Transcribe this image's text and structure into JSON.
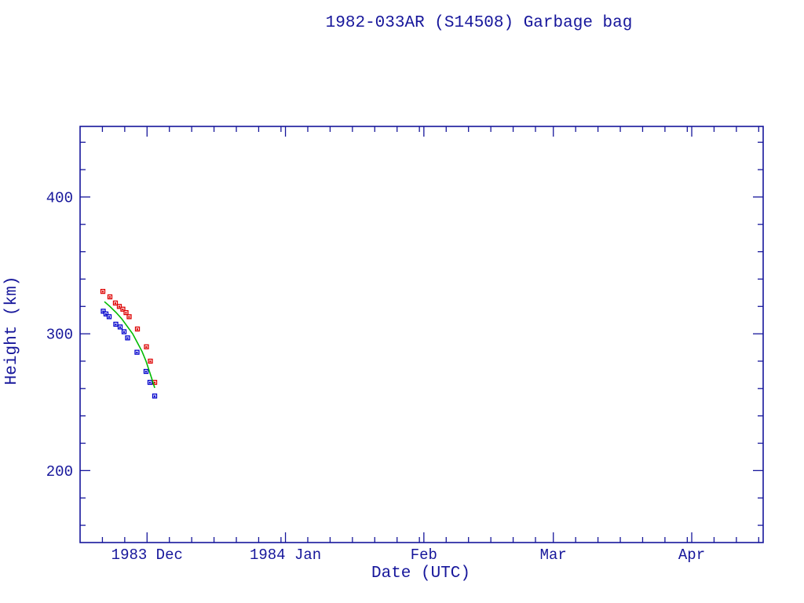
{
  "colors": {
    "axis_and_text": "#16169b",
    "red_series": "#dd0000",
    "blue_series": "#0000cc",
    "green_series": "#00bb00",
    "background": "#ffffff"
  },
  "chart_data": {
    "type": "scatter",
    "title": "1982-033AR (S14508) Garbage bag",
    "xlabel": "Date (UTC)",
    "ylabel": "Height (km)",
    "grid": false,
    "legend": "none",
    "x_axis": {
      "unit": "days since 1983-11-16 (left edge of plot)",
      "span_days": 153,
      "major_ticks": [
        {
          "label": "1983 Dec",
          "day": 15
        },
        {
          "label": "1984 Jan",
          "day": 46
        },
        {
          "label": "Feb",
          "day": 77
        },
        {
          "label": "Mar",
          "day": 106
        },
        {
          "label": "Apr",
          "day": 137
        }
      ],
      "minor_tick_days": [
        5,
        10,
        20,
        25,
        30,
        35,
        40,
        45,
        51,
        56,
        61,
        66,
        71,
        76,
        82,
        87,
        92,
        97,
        102,
        111,
        116,
        121,
        126,
        131,
        136,
        142,
        147,
        152
      ]
    },
    "y_axis": {
      "min": 147.4,
      "max": 451.6,
      "major_ticks": [
        {
          "label": "400",
          "value": 400
        },
        {
          "label": "300",
          "value": 300
        },
        {
          "label": "200",
          "value": 200
        }
      ],
      "minor_tick_values": [
        160,
        180,
        220,
        240,
        260,
        280,
        320,
        340,
        360,
        380,
        420,
        440
      ]
    },
    "series": [
      {
        "id": "red-squares",
        "name": "red squares (upper track)",
        "marker": "open-square-with-center-dot",
        "color": "#dd0000",
        "points": [
          {
            "day": 5.1,
            "height_km": 331
          },
          {
            "day": 6.68,
            "height_km": 327
          },
          {
            "day": 7.91,
            "height_km": 322.5
          },
          {
            "day": 8.79,
            "height_km": 320
          },
          {
            "day": 9.58,
            "height_km": 318
          },
          {
            "day": 10.29,
            "height_km": 315.5
          },
          {
            "day": 10.99,
            "height_km": 312.5
          },
          {
            "day": 12.84,
            "height_km": 303.5
          },
          {
            "day": 14.86,
            "height_km": 290.5
          },
          {
            "day": 15.74,
            "height_km": 280
          },
          {
            "day": 16.71,
            "height_km": 264.5
          }
        ]
      },
      {
        "id": "blue-squares",
        "name": "blue squares (lower track)",
        "marker": "open-square-with-center-dot",
        "color": "#0000cc",
        "points": [
          {
            "day": 5.19,
            "height_km": 316.5
          },
          {
            "day": 5.8,
            "height_km": 314.5
          },
          {
            "day": 6.51,
            "height_km": 312.5
          },
          {
            "day": 8.0,
            "height_km": 307
          },
          {
            "day": 8.97,
            "height_km": 305
          },
          {
            "day": 9.85,
            "height_km": 301.5
          },
          {
            "day": 10.64,
            "height_km": 297
          },
          {
            "day": 12.75,
            "height_km": 286.5
          },
          {
            "day": 14.77,
            "height_km": 272.5
          },
          {
            "day": 15.65,
            "height_km": 264.5
          },
          {
            "day": 16.71,
            "height_km": 254.5
          }
        ]
      },
      {
        "id": "green-curve",
        "name": "green decay curve",
        "type": "line",
        "color": "#00bb00",
        "points": [
          {
            "day": 5.45,
            "height_km": 323.5
          },
          {
            "day": 6.68,
            "height_km": 320
          },
          {
            "day": 8.09,
            "height_km": 315.5
          },
          {
            "day": 9.32,
            "height_km": 311
          },
          {
            "day": 10.55,
            "height_km": 305.5
          },
          {
            "day": 11.78,
            "height_km": 300
          },
          {
            "day": 12.84,
            "height_km": 293.5
          },
          {
            "day": 13.89,
            "height_km": 287
          },
          {
            "day": 14.77,
            "height_km": 280
          },
          {
            "day": 15.48,
            "height_km": 273
          },
          {
            "day": 16.18,
            "height_km": 266
          },
          {
            "day": 16.71,
            "height_km": 260.5
          }
        ]
      }
    ]
  }
}
